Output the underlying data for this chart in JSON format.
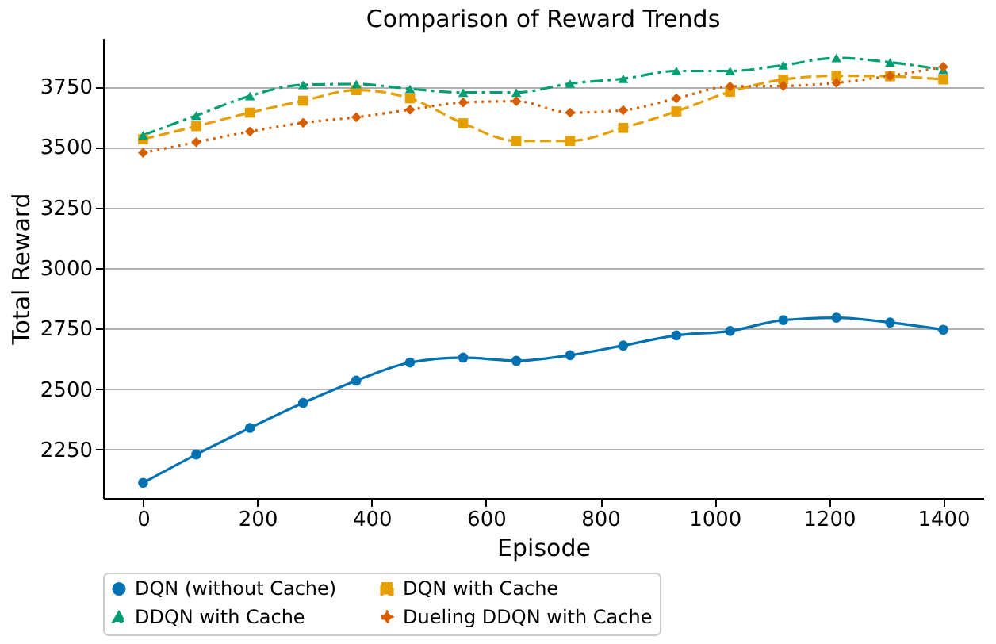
{
  "chart_data": {
    "type": "line",
    "title": "Comparison of Reward Trends",
    "xlabel": "Episode",
    "ylabel": "Total Reward",
    "x": [
      0,
      93,
      187,
      280,
      373,
      467,
      560,
      653,
      747,
      840,
      933,
      1027,
      1120,
      1213,
      1307,
      1400
    ],
    "xlim": [
      -70,
      1470
    ],
    "xticks": [
      0,
      200,
      400,
      600,
      800,
      1000,
      1200,
      1400
    ],
    "ylim": [
      2050,
      3950
    ],
    "yticks": [
      2250,
      2500,
      2750,
      3000,
      3250,
      3500,
      3750
    ],
    "grid": "y",
    "legend": "bottom",
    "series": [
      {
        "name": "DQN (without Cache)",
        "color": "#0072b2",
        "marker": "circle",
        "line_style": "solid",
        "values": [
          2113,
          2230,
          2340,
          2443,
          2535,
          2610,
          2630,
          2617,
          2640,
          2680,
          2722,
          2740,
          2785,
          2795,
          2775,
          2745
        ]
      },
      {
        "name": "DQN with Cache",
        "color": "#e69f00",
        "marker": "square",
        "line_style": "dashed",
        "values": [
          3532,
          3586,
          3642,
          3691,
          3735,
          3701,
          3598,
          3525,
          3525,
          3579,
          3647,
          3728,
          3779,
          3794,
          3792,
          3779
        ]
      },
      {
        "name": "DDQN with Cache",
        "color": "#009e73",
        "marker": "triangle",
        "line_style": "dashdot",
        "values": [
          3549,
          3630,
          3711,
          3757,
          3760,
          3740,
          3725,
          3725,
          3762,
          3782,
          3814,
          3814,
          3838,
          3868,
          3850,
          3819
        ]
      },
      {
        "name": "Dueling DDQN with Cache",
        "color": "#d55e00",
        "marker": "diamond",
        "line_style": "dotted",
        "values": [
          3476,
          3520,
          3564,
          3600,
          3623,
          3654,
          3684,
          3689,
          3642,
          3652,
          3701,
          3750,
          3752,
          3765,
          3794,
          3831
        ]
      }
    ]
  }
}
